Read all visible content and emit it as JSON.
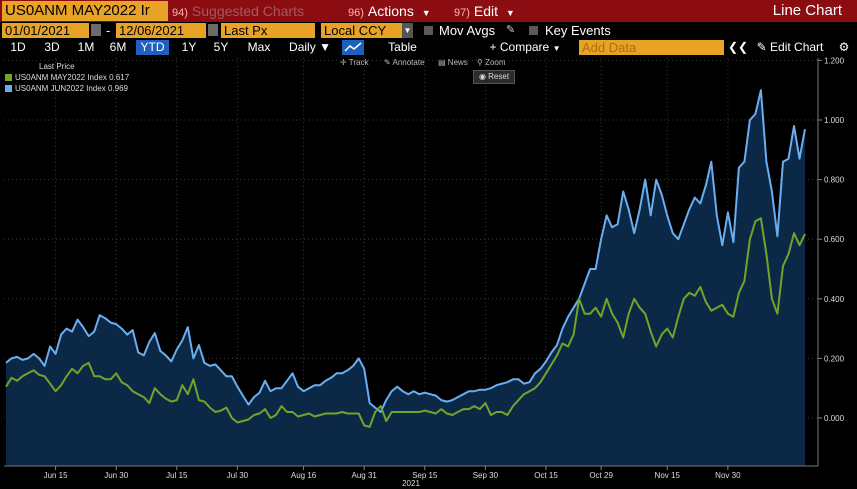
{
  "toolbar": {
    "ticker": "US0ANM MAY2022 Ir",
    "suggested_num": "94)",
    "suggested": "Suggested Charts",
    "actions_num": "96)",
    "actions": "Actions",
    "edit_num": "97)",
    "edit": "Edit",
    "title": "Line Chart"
  },
  "controls": {
    "start_date": "01/01/2021",
    "date_sep": "-",
    "end_date": "12/06/2021",
    "field": "Last Px",
    "currency": "Local CCY",
    "mov_avgs": "Mov Avgs",
    "key_events": "Key Events",
    "ranges": [
      "1D",
      "3D",
      "1M",
      "6M",
      "YTD",
      "1Y",
      "5Y",
      "Max"
    ],
    "selected_range": "YTD",
    "frequency": "Daily",
    "table": "Table",
    "compare": "Compare",
    "add_data_placeholder": "Add Data",
    "edit_chart": "Edit Chart"
  },
  "chart_tools": {
    "track": "Track",
    "annotate": "Annotate",
    "news": "News",
    "zoom": "Zoom",
    "reset": "Reset"
  },
  "colors": {
    "may": "#6fa529",
    "jun": "#6aaef0",
    "fill": "#0c2847",
    "accent": "#e8a327",
    "header": "#8b0d12"
  },
  "chart_data": {
    "type": "line",
    "legend_title": "Last Price",
    "legend_position": "top-left",
    "xlabel": "2021",
    "ylim": [
      -0.15,
      1.2
    ],
    "yticks": [
      0.0,
      0.2,
      0.4,
      0.6,
      0.8,
      1.0,
      1.2
    ],
    "ytick_labels": [
      "0.000",
      "0.200",
      "0.400",
      "0.600",
      "0.800",
      "1.000",
      "1.200"
    ],
    "xticks": [
      {
        "label": "Jun 15",
        "index": 9
      },
      {
        "label": "Jun 30",
        "index": 20
      },
      {
        "label": "Jul 15",
        "index": 31
      },
      {
        "label": "Jul 30",
        "index": 42
      },
      {
        "label": "Aug 16",
        "index": 54
      },
      {
        "label": "Aug 31",
        "index": 65
      },
      {
        "label": "Sep 15",
        "index": 76
      },
      {
        "label": "Sep 30",
        "index": 87
      },
      {
        "label": "Oct 15",
        "index": 98
      },
      {
        "label": "Oct 29",
        "index": 108
      },
      {
        "label": "Nov 15",
        "index": 120
      },
      {
        "label": "Nov 30",
        "index": 131
      }
    ],
    "series": [
      {
        "name": "US0ANM JUN2022 Index",
        "last": "0.969",
        "values": [
          0.185,
          0.2,
          0.205,
          0.195,
          0.2,
          0.215,
          0.2,
          0.175,
          0.24,
          0.215,
          0.28,
          0.3,
          0.29,
          0.33,
          0.305,
          0.275,
          0.29,
          0.345,
          0.335,
          0.32,
          0.315,
          0.3,
          0.28,
          0.295,
          0.22,
          0.21,
          0.255,
          0.285,
          0.225,
          0.21,
          0.19,
          0.23,
          0.26,
          0.305,
          0.2,
          0.245,
          0.185,
          0.175,
          0.18,
          0.16,
          0.14,
          0.14,
          0.105,
          0.075,
          0.045,
          0.07,
          0.085,
          0.125,
          0.09,
          0.1,
          0.1,
          0.125,
          0.15,
          0.105,
          0.09,
          0.1,
          0.11,
          0.11,
          0.125,
          0.135,
          0.15,
          0.15,
          0.16,
          0.175,
          0.2,
          0.165,
          0.05,
          0.035,
          0.02,
          0.06,
          0.09,
          0.105,
          0.09,
          0.08,
          0.09,
          0.08,
          0.085,
          0.08,
          0.075,
          0.06,
          0.055,
          0.06,
          0.07,
          0.08,
          0.09,
          0.09,
          0.095,
          0.095,
          0.1,
          0.11,
          0.115,
          0.12,
          0.13,
          0.13,
          0.115,
          0.12,
          0.15,
          0.165,
          0.19,
          0.22,
          0.245,
          0.3,
          0.34,
          0.37,
          0.4,
          0.45,
          0.5,
          0.5,
          0.6,
          0.68,
          0.64,
          0.65,
          0.76,
          0.7,
          0.62,
          0.7,
          0.8,
          0.68,
          0.8,
          0.75,
          0.68,
          0.62,
          0.6,
          0.65,
          0.7,
          0.74,
          0.72,
          0.78,
          0.86,
          0.68,
          0.58,
          0.69,
          0.59,
          0.84,
          0.86,
          1.0,
          1.02,
          1.1,
          0.86,
          0.76,
          0.61,
          0.86,
          0.87,
          0.98,
          0.87,
          0.969
        ]
      },
      {
        "name": "US0ANM MAY2022 Index",
        "last": "0.617",
        "values": [
          0.105,
          0.135,
          0.125,
          0.14,
          0.15,
          0.16,
          0.145,
          0.14,
          0.115,
          0.09,
          0.11,
          0.14,
          0.165,
          0.15,
          0.175,
          0.185,
          0.14,
          0.14,
          0.13,
          0.13,
          0.15,
          0.12,
          0.11,
          0.09,
          0.08,
          0.07,
          0.05,
          0.1,
          0.08,
          0.065,
          0.055,
          0.06,
          0.11,
          0.08,
          0.13,
          0.06,
          0.055,
          0.035,
          0.02,
          0.025,
          0.035,
          0.0,
          -0.015,
          -0.01,
          -0.005,
          0.01,
          0.015,
          0.03,
          0.0,
          0.01,
          0.04,
          0.02,
          0.02,
          0.005,
          0.01,
          0.015,
          0.005,
          0.01,
          0.015,
          0.015,
          0.015,
          0.02,
          0.015,
          0.015,
          0.015,
          -0.025,
          -0.03,
          0.02,
          0.04,
          -0.01,
          0.02,
          0.02,
          0.02,
          0.02,
          0.02,
          0.02,
          0.025,
          0.02,
          0.015,
          0.03,
          0.015,
          0.01,
          0.02,
          0.03,
          0.03,
          0.04,
          0.03,
          0.05,
          0.01,
          0.02,
          0.02,
          0.01,
          0.04,
          0.06,
          0.08,
          0.09,
          0.1,
          0.12,
          0.15,
          0.18,
          0.21,
          0.25,
          0.24,
          0.28,
          0.4,
          0.35,
          0.35,
          0.37,
          0.34,
          0.4,
          0.35,
          0.32,
          0.27,
          0.35,
          0.4,
          0.37,
          0.35,
          0.29,
          0.24,
          0.28,
          0.3,
          0.27,
          0.34,
          0.4,
          0.42,
          0.41,
          0.44,
          0.39,
          0.36,
          0.37,
          0.38,
          0.35,
          0.34,
          0.42,
          0.46,
          0.6,
          0.66,
          0.67,
          0.55,
          0.4,
          0.35,
          0.51,
          0.55,
          0.62,
          0.58,
          0.617
        ]
      }
    ]
  }
}
